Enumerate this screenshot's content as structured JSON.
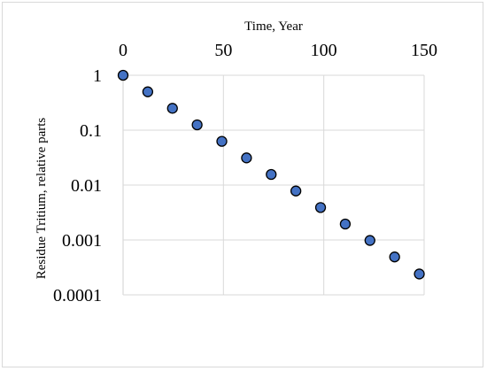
{
  "chart_data": {
    "type": "scatter",
    "title": "",
    "xlabel": "Time, Year",
    "ylabel": "Residue Tritium, relative parts",
    "x_axis_position": "top",
    "xlim": [
      0,
      150
    ],
    "x_ticks": [
      0,
      50,
      100,
      150
    ],
    "x_tick_labels": [
      "0",
      "50",
      "100",
      "150"
    ],
    "ylim": [
      0.0001,
      1
    ],
    "y_scale": "log",
    "y_ticks": [
      1,
      0.1,
      0.01,
      0.001,
      0.0001
    ],
    "y_tick_labels": [
      "1",
      "0.1",
      "0.01",
      "0.001",
      "0.0001"
    ],
    "grid": true,
    "legend": "none",
    "marker_color": "#4472c4",
    "marker_edge_color": "#000000",
    "gridline_color": "#d9d9d9",
    "points": [
      {
        "x": 0,
        "y": 1
      },
      {
        "x": 12.3,
        "y": 0.5
      },
      {
        "x": 24.6,
        "y": 0.25
      },
      {
        "x": 36.9,
        "y": 0.125
      },
      {
        "x": 49.2,
        "y": 0.0625
      },
      {
        "x": 61.5,
        "y": 0.03125
      },
      {
        "x": 73.8,
        "y": 0.0156
      },
      {
        "x": 86.1,
        "y": 0.0078
      },
      {
        "x": 98.4,
        "y": 0.0039
      },
      {
        "x": 110.7,
        "y": 0.00195
      },
      {
        "x": 123.0,
        "y": 0.00098
      },
      {
        "x": 135.3,
        "y": 0.00049
      },
      {
        "x": 147.6,
        "y": 0.00024
      }
    ]
  }
}
